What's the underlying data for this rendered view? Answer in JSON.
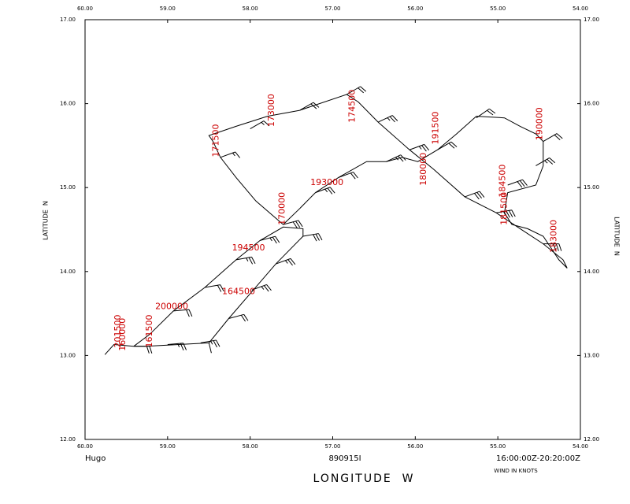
{
  "chart_data": {
    "type": "track",
    "storm": "Hugo",
    "flight": "890915I",
    "time_range": "16:00:00Z-20:20:00Z",
    "note": "WIND IN KNOTS",
    "x_label": "LONGITUDE  W",
    "y_label": "LATITUDE  N",
    "xlim": [
      60,
      54
    ],
    "ylim": [
      12,
      17
    ],
    "xticks": [
      {
        "value": 60,
        "label": "60.00"
      },
      {
        "value": 59,
        "label": "59.00"
      },
      {
        "value": 58,
        "label": "58.00"
      },
      {
        "value": 57,
        "label": "57.00"
      },
      {
        "value": 56,
        "label": "56.00"
      },
      {
        "value": 55,
        "label": "55.00"
      },
      {
        "value": 54,
        "label": "54.00"
      }
    ],
    "yticks": [
      {
        "value": 12,
        "label": "12.00"
      },
      {
        "value": 13,
        "label": "13.00"
      },
      {
        "value": 14,
        "label": "14.00"
      },
      {
        "value": 15,
        "label": "15.00"
      },
      {
        "value": 16,
        "label": "16.00"
      },
      {
        "value": 17,
        "label": "17.00"
      }
    ],
    "track_color": "#000000",
    "label_color": "#cc0000",
    "track": {
      "lon": [
        59.76,
        59.65,
        59.41,
        59.27,
        58.5,
        58.47,
        null,
        58.5,
        58.26,
        57.98,
        57.69,
        57.36,
        57.36,
        57.6,
        57.88,
        58.17,
        58.55,
        58.93,
        59.22,
        59.41,
        null,
        57.6,
        57.93,
        58.17,
        58.36,
        58.45,
        58.5,
        58.17,
        57.79,
        57.4,
        56.83,
        56.69,
        56.45,
        56.07,
        55.78,
        55.4,
        55.02,
        54.73,
        54.45,
        54.21,
        54.16,
        54.26,
        54.45,
        54.64,
        54.83,
        54.92,
        54.88,
        54.54,
        54.45,
        54.45,
        54.54,
        54.73,
        54.92,
        55.26,
        55.5,
        55.73,
        55.97,
        56.16,
        56.35,
        56.59,
        56.93,
        57.21,
        57.4,
        57.6
      ],
      "lat": [
        13.01,
        13.13,
        13.11,
        13.11,
        13.15,
        13.03,
        null,
        13.15,
        13.44,
        13.76,
        14.09,
        14.42,
        14.51,
        14.53,
        14.37,
        14.14,
        13.81,
        13.53,
        13.25,
        13.11,
        null,
        14.56,
        14.84,
        15.12,
        15.36,
        15.55,
        15.62,
        15.73,
        15.85,
        15.92,
        16.11,
        16.02,
        15.78,
        15.45,
        15.22,
        14.89,
        14.7,
        14.51,
        14.33,
        14.14,
        14.04,
        14.14,
        14.42,
        14.51,
        14.56,
        14.7,
        14.94,
        15.03,
        15.26,
        15.55,
        15.64,
        15.73,
        15.83,
        15.85,
        15.64,
        15.45,
        15.31,
        15.36,
        15.31,
        15.31,
        15.12,
        14.94,
        14.75,
        14.56
      ]
    },
    "barbs": {
      "lon": [
        59.41,
        59.0,
        58.6,
        58.26,
        57.98,
        57.69,
        57.36,
        57.88,
        58.17,
        58.55,
        58.93,
        58.36,
        58.0,
        57.4,
        56.83,
        56.45,
        56.07,
        55.4,
        55.02,
        54.45,
        54.88,
        54.54,
        54.45,
        55.26,
        55.73,
        56.35,
        56.93,
        57.21,
        57.6
      ],
      "lat": [
        13.11,
        13.13,
        13.15,
        13.44,
        13.78,
        14.09,
        14.42,
        14.37,
        14.14,
        13.81,
        13.53,
        15.36,
        15.7,
        15.92,
        16.11,
        15.78,
        15.45,
        14.89,
        14.7,
        14.33,
        15.03,
        15.26,
        15.55,
        15.83,
        15.45,
        15.31,
        15.12,
        14.94,
        14.56
      ],
      "direction": [
        90,
        85,
        80,
        75,
        70,
        70,
        80,
        75,
        80,
        80,
        85,
        70,
        60,
        60,
        60,
        65,
        70,
        70,
        80,
        90,
        70,
        60,
        60,
        55,
        60,
        65,
        70,
        70,
        75
      ],
      "speed": [
        20,
        25,
        25,
        20,
        25,
        25,
        30,
        25,
        25,
        20,
        20,
        15,
        15,
        20,
        20,
        25,
        25,
        30,
        35,
        30,
        30,
        25,
        20,
        20,
        20,
        25,
        20,
        25,
        30
      ]
    },
    "time_labels": {
      "text": [
        "201500",
        "160000",
        "161500",
        "200000",
        "164500",
        "194500",
        "170000",
        "193000",
        "180000",
        "184500",
        "181500",
        "183000",
        "171500",
        "173000",
        "174500",
        "191500",
        "190000"
      ],
      "lon": [
        59.6,
        59.54,
        59.22,
        58.95,
        58.14,
        58.02,
        57.61,
        57.07,
        55.9,
        54.94,
        54.92,
        54.32,
        58.41,
        57.74,
        56.76,
        55.75,
        54.49
      ],
      "lat": [
        13.29,
        13.25,
        13.29,
        13.58,
        13.76,
        14.28,
        14.75,
        15.06,
        15.22,
        15.08,
        14.75,
        14.42,
        15.56,
        15.92,
        15.97,
        15.71,
        15.76
      ],
      "vertical": [
        true,
        true,
        true,
        false,
        false,
        false,
        true,
        false,
        true,
        true,
        true,
        true,
        true,
        true,
        true,
        true,
        true
      ]
    }
  }
}
